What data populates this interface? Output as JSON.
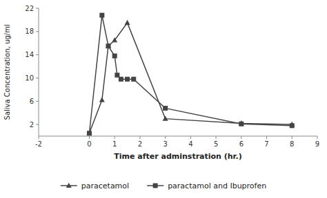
{
  "chart_data": {
    "type": "line",
    "x_label": "Time after adminstration (hr.)",
    "y_label": "Saliva Concentration, ug/ml",
    "series": [
      {
        "name": "paracetamol",
        "color": "#444444",
        "marker": "triangle",
        "x": [
          0,
          0.5,
          0.75,
          1.0,
          1.5,
          3.0,
          6.0,
          8.0
        ],
        "values": [
          0.5,
          6.2,
          15.5,
          16.5,
          19.5,
          3.0,
          2.2,
          2.0
        ]
      },
      {
        "name": "paractamol and Ibuprofen",
        "color": "#444444",
        "marker": "square",
        "x": [
          0,
          0.5,
          0.75,
          1.0,
          1.1,
          1.25,
          1.5,
          1.75,
          3.0,
          6.0,
          8.0
        ],
        "values": [
          0.5,
          20.8,
          15.5,
          13.8,
          10.5,
          9.8,
          9.8,
          9.8,
          4.8,
          2.1,
          1.8
        ]
      }
    ],
    "xlim": [
      -2,
      9
    ],
    "ylim": [
      0,
      22
    ],
    "xticks": [
      -2,
      0,
      1,
      2,
      3,
      4,
      5,
      6,
      7,
      8,
      9
    ],
    "yticks": [
      2,
      6,
      10,
      14,
      18,
      22
    ],
    "grid": false,
    "legend": "bottom"
  }
}
